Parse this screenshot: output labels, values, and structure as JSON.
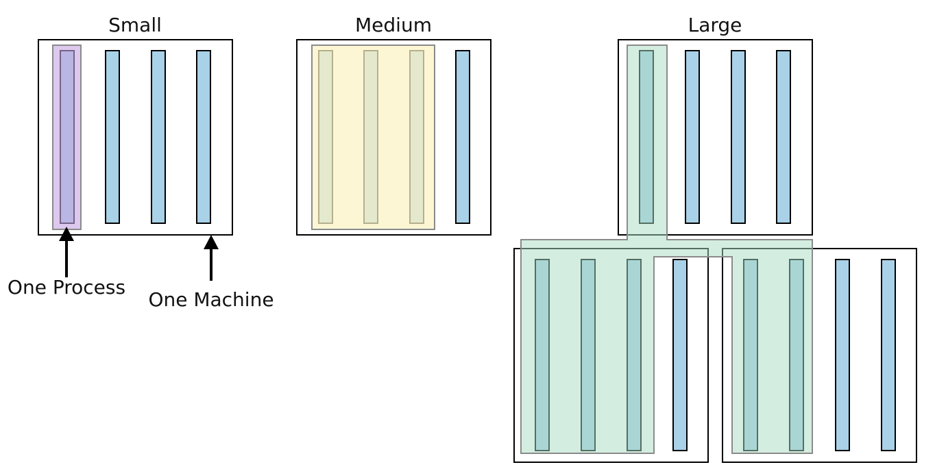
{
  "titles": {
    "small": "Small",
    "medium": "Medium",
    "large": "Large"
  },
  "annotations": {
    "process": "One Process",
    "machine": "One Machine"
  },
  "colors": {
    "process_fill": "#a9d1e7",
    "stroke": "#000000",
    "small_highlight": "#c7a3e3",
    "medium_highlight": "#fbf2c3",
    "large_highlight": "#a9dcc4"
  },
  "icons": {
    "arrow": "up-arrow-icon"
  }
}
